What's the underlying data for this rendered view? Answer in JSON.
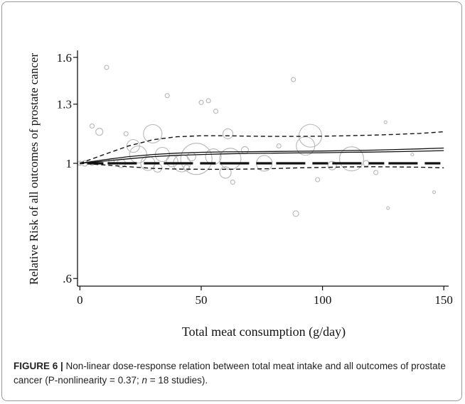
{
  "chart_data": {
    "type": "line",
    "xlabel": "Total meat consumption (g/day)",
    "ylabel": "Relative Risk of all outcomes of prostate cancer",
    "x_ticks": [
      0,
      50,
      100,
      150
    ],
    "y_ticks": [
      0.6,
      1,
      1.3,
      1.6
    ],
    "y_tick_labels": [
      ".6",
      "1",
      "1.3",
      "1.6"
    ],
    "xlim": [
      -1,
      152
    ],
    "ylim": [
      0.58,
      1.65
    ],
    "y_scale": "log",
    "grid": false,
    "series": [
      {
        "style": "solid",
        "x": [
          0,
          10,
          20,
          30,
          40,
          50,
          60,
          70,
          80,
          90,
          100,
          110,
          120,
          130,
          140,
          150
        ],
        "y": [
          1.0,
          1.016,
          1.03,
          1.04,
          1.046,
          1.05,
          1.052,
          1.053,
          1.054,
          1.055,
          1.056,
          1.058,
          1.06,
          1.063,
          1.066,
          1.07
        ]
      },
      {
        "style": "dashed",
        "x": [
          0,
          10,
          20,
          30,
          40,
          50,
          60,
          70,
          80,
          90,
          100,
          110,
          120,
          130,
          140,
          150
        ],
        "y": [
          1.0,
          1.04,
          1.08,
          1.11,
          1.125,
          1.13,
          1.13,
          1.128,
          1.127,
          1.127,
          1.128,
          1.13,
          1.133,
          1.137,
          1.142,
          1.15
        ]
      },
      {
        "style": "dashed",
        "x": [
          0,
          10,
          20,
          30,
          40,
          50,
          60,
          70,
          80,
          90,
          100,
          110,
          120,
          130,
          140,
          150
        ],
        "y": [
          1.0,
          0.993,
          0.985,
          0.978,
          0.975,
          0.974,
          0.974,
          0.975,
          0.977,
          0.98,
          0.982,
          0.984,
          0.985,
          0.984,
          0.983,
          0.98
        ]
      },
      {
        "style": "solid",
        "x": [
          0,
          10,
          20,
          30,
          40,
          50,
          60,
          70,
          80,
          90,
          100,
          110,
          120,
          130,
          140,
          150
        ],
        "y": [
          1.0,
          1.01,
          1.02,
          1.03,
          1.036,
          1.04,
          1.043,
          1.045,
          1.046,
          1.047,
          1.048,
          1.05,
          1.051,
          1.053,
          1.055,
          1.058
        ]
      },
      {
        "style": "reference",
        "x": [
          0,
          150
        ],
        "y": [
          1.0,
          1.0
        ]
      }
    ],
    "study_points": [
      {
        "x": 0,
        "y": 1.0,
        "size": 3
      },
      {
        "x": 2,
        "y": 1.0,
        "size": 4
      },
      {
        "x": 5,
        "y": 1.0,
        "size": 3
      },
      {
        "x": 8,
        "y": 1.15,
        "size": 5
      },
      {
        "x": 5,
        "y": 1.18,
        "size": 3
      },
      {
        "x": 11,
        "y": 1.53,
        "size": 3
      },
      {
        "x": 13,
        "y": 1.01,
        "size": 4
      },
      {
        "x": 17,
        "y": 1.0,
        "size": 6
      },
      {
        "x": 19,
        "y": 1.14,
        "size": 3
      },
      {
        "x": 22,
        "y": 1.08,
        "size": 9
      },
      {
        "x": 24,
        "y": 1.04,
        "size": 12
      },
      {
        "x": 28,
        "y": 1.0,
        "size": 10
      },
      {
        "x": 30,
        "y": 1.14,
        "size": 13
      },
      {
        "x": 32,
        "y": 0.98,
        "size": 6
      },
      {
        "x": 34,
        "y": 1.04,
        "size": 10
      },
      {
        "x": 36,
        "y": 1.35,
        "size": 3
      },
      {
        "x": 38,
        "y": 1.01,
        "size": 8
      },
      {
        "x": 42,
        "y": 1.0,
        "size": 12
      },
      {
        "x": 44,
        "y": 0.98,
        "size": 4
      },
      {
        "x": 46,
        "y": 1.03,
        "size": 6
      },
      {
        "x": 48,
        "y": 1.02,
        "size": 22
      },
      {
        "x": 50,
        "y": 1.31,
        "size": 3
      },
      {
        "x": 53,
        "y": 1.32,
        "size": 3
      },
      {
        "x": 55,
        "y": 1.03,
        "size": 11
      },
      {
        "x": 56,
        "y": 1.26,
        "size": 3
      },
      {
        "x": 60,
        "y": 0.96,
        "size": 8
      },
      {
        "x": 61,
        "y": 1.14,
        "size": 7
      },
      {
        "x": 62,
        "y": 1.02,
        "size": 15
      },
      {
        "x": 63,
        "y": 0.92,
        "size": 3
      },
      {
        "x": 68,
        "y": 1.06,
        "size": 5
      },
      {
        "x": 76,
        "y": 1.0,
        "size": 11
      },
      {
        "x": 82,
        "y": 1.08,
        "size": 3
      },
      {
        "x": 88,
        "y": 1.45,
        "size": 3
      },
      {
        "x": 89,
        "y": 0.8,
        "size": 4
      },
      {
        "x": 93,
        "y": 1.08,
        "size": 13
      },
      {
        "x": 95,
        "y": 1.13,
        "size": 16
      },
      {
        "x": 98,
        "y": 0.93,
        "size": 3
      },
      {
        "x": 104,
        "y": 0.99,
        "size": 6
      },
      {
        "x": 112,
        "y": 1.02,
        "size": 17
      },
      {
        "x": 118,
        "y": 1.0,
        "size": 4
      },
      {
        "x": 122,
        "y": 0.96,
        "size": 3
      },
      {
        "x": 126,
        "y": 1.2,
        "size": 2
      },
      {
        "x": 127,
        "y": 0.82,
        "size": 2
      },
      {
        "x": 137,
        "y": 1.04,
        "size": 2
      },
      {
        "x": 146,
        "y": 0.88,
        "size": 2
      }
    ]
  },
  "caption": {
    "label": "FIGURE 6 |",
    "text": " Non-linear dose-response relation between total meat intake and all outcomes of prostate cancer (P-nonlinearity = 0.37; ",
    "n_symbol": "n",
    "text_end": " = 18 studies)."
  },
  "colors": {
    "axis": "#111111",
    "line": "#111111",
    "bubble": "#bdbdbd",
    "border": "#9a9a9a"
  }
}
